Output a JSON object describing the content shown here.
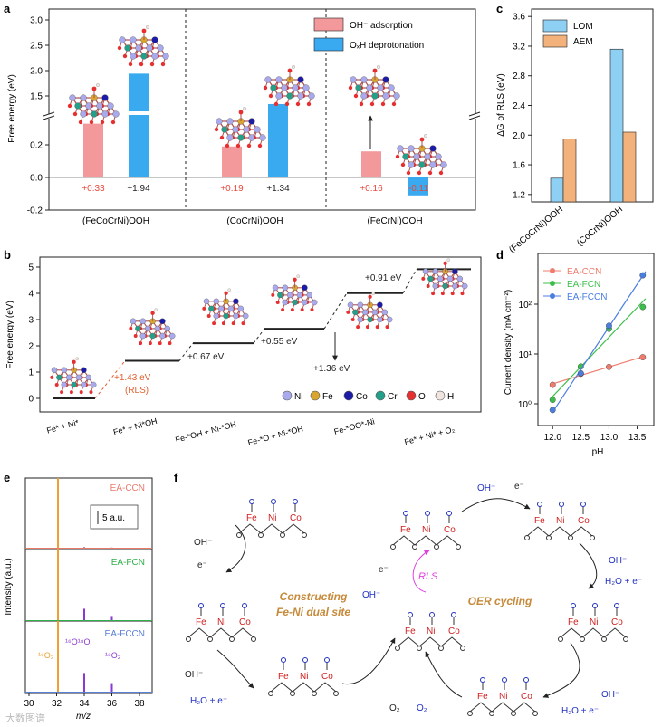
{
  "chart_data": [
    {
      "panel": "a",
      "type": "bar",
      "ylabel": "Free energy (eV)",
      "categories": [
        "(FeCoCrNi)OOH",
        "(CoCrNi)OOH",
        "(FeCrNi)OOH"
      ],
      "series": [
        {
          "name": "OH⁻ adsorption",
          "color": "#f4999b",
          "values": [
            0.33,
            0.19,
            0.16
          ]
        },
        {
          "name": "OₓH deprotonation",
          "color": "#3aaaf0",
          "values": [
            1.94,
            1.34,
            -0.11
          ]
        }
      ],
      "value_labels": [
        "+0.33",
        "+1.94",
        "+0.19",
        "+1.34",
        "+0.16",
        "-0.11"
      ],
      "yticks_lower": [
        "-0.2",
        "0.0",
        "0.2"
      ],
      "yticks_upper": [
        "1.5",
        "2.0",
        "2.5",
        "3.0"
      ]
    },
    {
      "panel": "b",
      "type": "line",
      "ylabel": "Free energy (eV)",
      "steps": [
        "Fe* + Ni*",
        "Fe* + Ni*OH",
        "Fe-*OH + Ni-*OH",
        "Fe-*O + Ni-*OH",
        "Fe-*OO*-Ni",
        "Fe* + Ni* + O₂"
      ],
      "levels": [
        0.0,
        1.43,
        2.1,
        2.65,
        4.01,
        4.92
      ],
      "step_labels": [
        "+1.43 eV",
        "(RLS)",
        "+0.67 eV",
        "+0.55 eV",
        "+1.36 eV",
        "+0.91 eV"
      ],
      "yticks": [
        "0",
        "1",
        "2",
        "3",
        "4",
        "5"
      ],
      "legend": [
        {
          "name": "Ni",
          "color": "#a9a9ee"
        },
        {
          "name": "Fe",
          "color": "#d9a52e"
        },
        {
          "name": "Co",
          "color": "#1b1ba8"
        },
        {
          "name": "Cr",
          "color": "#22a08a"
        },
        {
          "name": "O",
          "color": "#e63030"
        },
        {
          "name": "H",
          "color": "#f0e6df"
        }
      ]
    },
    {
      "panel": "c",
      "type": "bar",
      "ylabel": "ΔG of RLS (eV)",
      "categories": [
        "(FeCoCrNi)OOH",
        "(CoCrNi)OOH"
      ],
      "series": [
        {
          "name": "LOM",
          "color": "#8ed0f3",
          "values": [
            1.42,
            3.16
          ]
        },
        {
          "name": "AEM",
          "color": "#f3b27b",
          "values": [
            1.95,
            2.04
          ]
        }
      ],
      "ylim": [
        1.1,
        3.7
      ],
      "yticks": [
        "1.2",
        "1.6",
        "2.0",
        "2.4",
        "2.8",
        "3.2",
        "3.6"
      ]
    },
    {
      "panel": "d",
      "type": "scatter",
      "xlabel": "pH",
      "ylabel": "Current density (mA cm⁻²)",
      "yscale": "log",
      "xticks": [
        "12.0",
        "12.5",
        "13.0",
        "13.5"
      ],
      "yticks": [
        "10⁰",
        "10¹",
        "10²"
      ],
      "series": [
        {
          "name": "EA-CCN",
          "color": "#f07c6e",
          "x": [
            12.0,
            12.5,
            13.0,
            13.6
          ],
          "y": [
            2.4,
            4.0,
            5.5,
            8.6
          ]
        },
        {
          "name": "EA-FCN",
          "color": "#3cbf4a",
          "x": [
            12.0,
            12.5,
            13.0,
            13.6
          ],
          "y": [
            1.2,
            5.6,
            32,
            88
          ]
        },
        {
          "name": "EA-FCCN",
          "color": "#4a7ee0",
          "x": [
            12.0,
            12.5,
            13.0,
            13.6
          ],
          "y": [
            0.75,
            4.1,
            37,
            380
          ]
        }
      ]
    },
    {
      "panel": "e",
      "type": "line",
      "xlabel": "m/z",
      "ylabel": "Intensity (a.u.)",
      "xticks": [
        "30",
        "32",
        "34",
        "36",
        "38"
      ],
      "scale_label": "5 a.u.",
      "samples": [
        "EA-CCN",
        "EA-FCN",
        "EA-FCCN"
      ],
      "sample_colors": [
        "#e87a6c",
        "#2fb04a",
        "#5a7fd8"
      ],
      "peak_labels": [
        "¹⁶O₂",
        "¹⁶O¹⁸O",
        "¹⁸O₂"
      ]
    }
  ],
  "panels": {
    "a": "a",
    "b": "b",
    "c": "c",
    "d": "d",
    "e": "e",
    "f": "f"
  },
  "scheme": {
    "title_left": "Constructing",
    "title_left2": "Fe-Ni dual site",
    "title_right": "OER cycling",
    "rls": "RLS",
    "oh": "OH⁻",
    "e": "e⁻",
    "h2o_e": "H₂O + e⁻",
    "o2": "O₂",
    "fe": "Fe",
    "ni": "Ni",
    "co": "Co"
  },
  "watermark": "大数图谱"
}
